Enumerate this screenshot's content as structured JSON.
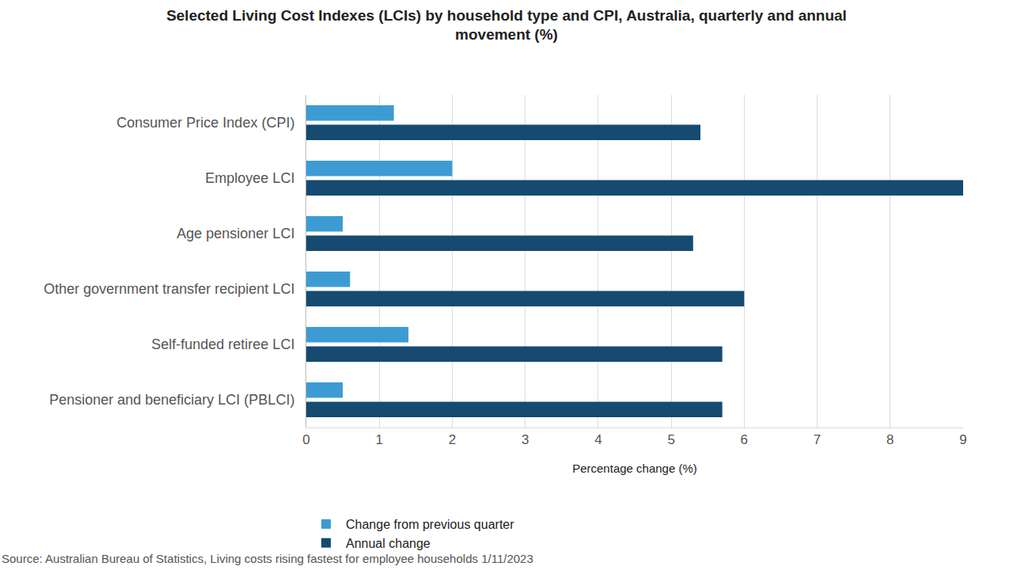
{
  "chart_data": {
    "type": "bar",
    "orientation": "horizontal",
    "title": "Selected Living Cost Indexes (LCIs) by household type and CPI, Australia, quarterly and annual movement (%)",
    "x_label": "Percentage change (%)",
    "categories": [
      "Consumer Price Index (CPI)",
      "Employee LCI",
      "Age pensioner LCI",
      "Other government transfer recipient LCI",
      "Self-funded retiree LCI",
      "Pensioner and beneficiary LCI (PBLCI)"
    ],
    "series": [
      {
        "name": "Change from previous quarter",
        "color": "#3d9bd4",
        "values": [
          1.2,
          2.0,
          0.5,
          0.6,
          1.4,
          0.5
        ]
      },
      {
        "name": "Annual change",
        "color": "#164a70",
        "values": [
          5.4,
          9.0,
          5.3,
          6.0,
          5.7,
          5.7
        ]
      }
    ],
    "xlim": [
      0,
      9
    ],
    "xticks": [
      0,
      1,
      2,
      3,
      4,
      5,
      6,
      7,
      8,
      9
    ],
    "grid": true,
    "legend": "bottom",
    "annotations": [
      "Source: Australian Bureau of Statistics, Living costs rising fastest for employee households 1/11/2023"
    ]
  }
}
